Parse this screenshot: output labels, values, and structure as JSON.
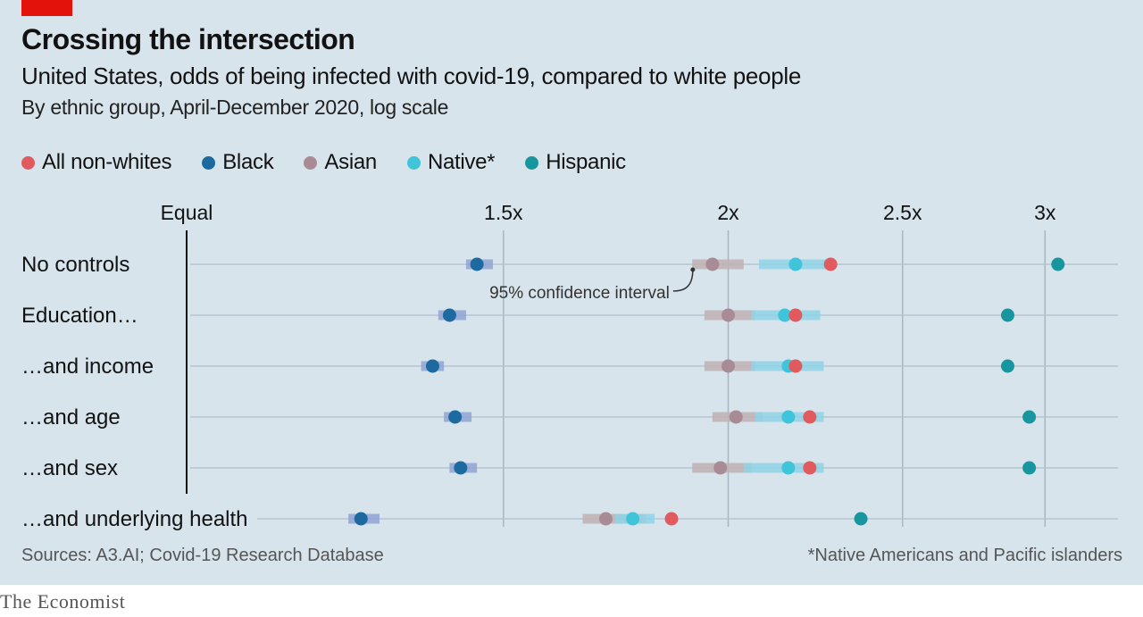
{
  "header": {
    "title": "Crossing the intersection",
    "subtitle": "United States, odds of being infected with covid-19, compared to white people",
    "subsubtitle": "By ethnic group, April-December 2020, log scale"
  },
  "colors": {
    "panel_background": "#d8e4ec",
    "brand_tag": "#e3120b",
    "All non-whites": "#e05a5e",
    "Black": "#1d6aa0",
    "Asian": "#a88b94",
    "Native*": "#3fc4da",
    "Hispanic": "#1896a0",
    "ci_black": "#8fa4d4",
    "ci_asian": "#bfb2b5",
    "ci_native": "#8fd3e6",
    "gridline": "#a7b7c1",
    "row_line": "#b4c4ce",
    "baseline": "#121212"
  },
  "legend": [
    {
      "label": "All non-whites",
      "color": "#e05a5e"
    },
    {
      "label": "Black",
      "color": "#1d6aa0"
    },
    {
      "label": "Asian",
      "color": "#a88b94"
    },
    {
      "label": "Native*",
      "color": "#3fc4da"
    },
    {
      "label": "Hispanic",
      "color": "#1896a0"
    }
  ],
  "chart_data": {
    "type": "scatter",
    "title": "Crossing the intersection",
    "subtitle": "United States, odds of being infected with covid-19, compared to white people",
    "scale": "log",
    "xlim": [
      1,
      3.2
    ],
    "x_ticks": [
      {
        "value": 1,
        "label": "Equal"
      },
      {
        "value": 1.5,
        "label": "1.5x"
      },
      {
        "value": 2,
        "label": "2x"
      },
      {
        "value": 2.5,
        "label": "2.5x"
      },
      {
        "value": 3,
        "label": "3x"
      }
    ],
    "grid": true,
    "legend_position": "top-left",
    "categories": [
      "No controls",
      "Education…",
      "…and income",
      "…and age",
      "…and sex",
      "…and underlying health"
    ],
    "series": [
      {
        "name": "All non-whites",
        "values": [
          2.28,
          2.18,
          2.18,
          2.22,
          2.22,
          1.86
        ]
      },
      {
        "name": "Black",
        "values": [
          1.45,
          1.4,
          1.37,
          1.41,
          1.42,
          1.25
        ]
      },
      {
        "name": "Asian",
        "values": [
          1.96,
          2.0,
          2.0,
          2.02,
          1.98,
          1.71
        ]
      },
      {
        "name": "Native*",
        "values": [
          2.18,
          2.15,
          2.16,
          2.16,
          2.16,
          1.77
        ]
      },
      {
        "name": "Hispanic",
        "values": [
          3.05,
          2.86,
          2.86,
          2.94,
          2.94,
          2.37
        ]
      }
    ],
    "confidence_intervals": [
      {
        "name": "Black",
        "ranges": [
          [
            1.43,
            1.48
          ],
          [
            1.38,
            1.43
          ],
          [
            1.35,
            1.39
          ],
          [
            1.39,
            1.44
          ],
          [
            1.4,
            1.45
          ],
          [
            1.23,
            1.28
          ]
        ]
      },
      {
        "name": "Asian",
        "ranges": [
          [
            1.91,
            2.04
          ],
          [
            1.94,
            2.07
          ],
          [
            1.94,
            2.07
          ],
          [
            1.96,
            2.09
          ],
          [
            1.91,
            2.06
          ],
          [
            1.66,
            1.8
          ]
        ]
      },
      {
        "name": "Native*",
        "ranges": [
          [
            2.08,
            2.27
          ],
          [
            2.06,
            2.25
          ],
          [
            2.06,
            2.26
          ],
          [
            2.07,
            2.26
          ],
          [
            2.04,
            2.26
          ],
          [
            1.73,
            1.82
          ]
        ]
      }
    ],
    "annotation": {
      "text": "95% confidence interval",
      "row": 0,
      "series": "Asian"
    }
  },
  "footer": {
    "source": "Sources: A3.AI; Covid-19 Research Database",
    "note": "*Native Americans and Pacific islanders",
    "logo": "The Economist"
  }
}
